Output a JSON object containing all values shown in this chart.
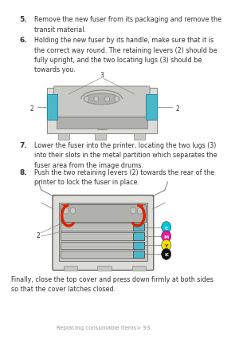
{
  "bg_color": "#ffffff",
  "text_color": "#333333",
  "title_footer": "Replacing consumable items> 93",
  "step5_num": "5.",
  "step5_text": "Remove the new fuser from its packaging and remove the\ntransit material.",
  "step6_num": "6.",
  "step6_text": "Holding the new fuser by its handle, make sure that it is\nthe correct way round. The retaining levers (2) should be\nfully upright, and the two locating lugs (3) should be\ntowards you.",
  "step7_num": "7.",
  "step7_text": "Lower the fuser into the printer, locating the two lugs (3)\ninto their slots in the metal partition which separates the\nfuser area from the image drums.",
  "step8_num": "8.",
  "step8_text": "Push the two retaining levers (2) towards the rear of the\nprinter to lock the fuser in place.",
  "finally_text": "Finally, close the top cover and press down firmly at both sides\nso that the cover latches closed.",
  "font_size_body": 5.8,
  "font_size_num": 6.5,
  "font_size_footer": 5.0,
  "cyan_color": "#00c8d8",
  "magenta_color": "#e8189c",
  "yellow_color": "#f5e000",
  "black_color": "#111111",
  "red_arrow_color": "#dd2200",
  "teal_lever": "#4ab8c8",
  "diagram_gray": "#c8c8c4",
  "diagram_dark": "#888884",
  "diagram_mid": "#b0b0ac",
  "diagram_light": "#dcdcd8"
}
